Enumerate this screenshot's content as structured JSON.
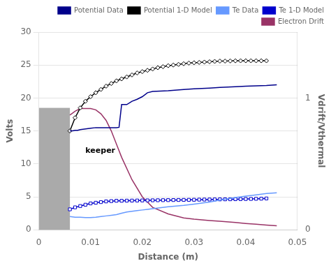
{
  "chart_data": {
    "type": "line",
    "xlabel": "Distance (m)",
    "ylabel": "Volts",
    "y2label": "Vdrift/Vthermal",
    "xlim": [
      0,
      0.05
    ],
    "xticks": [
      0,
      0.01,
      0.02,
      0.03,
      0.04,
      0.05
    ],
    "ylim": [
      0,
      30
    ],
    "yticks": [
      0,
      5,
      10,
      15,
      20,
      25,
      30
    ],
    "y2lim": [
      0,
      1.5
    ],
    "y2ticks": [
      0,
      1
    ],
    "grid": "y",
    "legend": "upper right",
    "rectangles": [
      {
        "x0": 0.0,
        "x1": 0.006,
        "y0": 0,
        "y1": 18.5,
        "color": "#AAAAAA"
      }
    ],
    "annotations": [
      {
        "text": "keeper",
        "x": 0.009,
        "y": 12.0
      }
    ],
    "series": [
      {
        "name": "Potential Data",
        "color": "#00008B",
        "x": [
          0.006,
          0.0065,
          0.007,
          0.0075,
          0.008,
          0.009,
          0.01,
          0.011,
          0.012,
          0.013,
          0.014,
          0.015,
          0.0155,
          0.016,
          0.0165,
          0.017,
          0.018,
          0.019,
          0.02,
          0.021,
          0.022,
          0.025,
          0.028,
          0.03,
          0.033,
          0.035,
          0.038,
          0.04,
          0.042,
          0.044,
          0.046
        ],
        "values": [
          15.0,
          15.0,
          15.1,
          15.1,
          15.2,
          15.3,
          15.4,
          15.5,
          15.5,
          15.5,
          15.5,
          15.5,
          15.55,
          19.0,
          19.0,
          19.0,
          19.5,
          19.8,
          20.2,
          20.8,
          21.0,
          21.1,
          21.3,
          21.4,
          21.5,
          21.6,
          21.7,
          21.8,
          21.85,
          21.9,
          22.0
        ]
      },
      {
        "name": "Potential 1-D Model",
        "color": "#000000",
        "marker": "diamond",
        "x": [
          0.006,
          0.007,
          0.008,
          0.009,
          0.01,
          0.011,
          0.012,
          0.013,
          0.014,
          0.015,
          0.016,
          0.017,
          0.018,
          0.019,
          0.02,
          0.021,
          0.022,
          0.023,
          0.024,
          0.025,
          0.026,
          0.027,
          0.028,
          0.029,
          0.03,
          0.031,
          0.032,
          0.033,
          0.034,
          0.035,
          0.036,
          0.037,
          0.038,
          0.039,
          0.04,
          0.041,
          0.042,
          0.043,
          0.044
        ],
        "values": [
          15.0,
          17.0,
          18.5,
          19.5,
          20.2,
          20.8,
          21.3,
          21.8,
          22.2,
          22.6,
          22.9,
          23.2,
          23.5,
          23.8,
          24.0,
          24.2,
          24.4,
          24.6,
          24.75,
          24.9,
          25.0,
          25.1,
          25.2,
          25.3,
          25.35,
          25.4,
          25.45,
          25.5,
          25.55,
          25.6,
          25.6,
          25.62,
          25.64,
          25.65,
          25.65,
          25.65,
          25.65,
          25.65,
          25.65
        ]
      },
      {
        "name": "Te Data",
        "color": "#6699FF",
        "x": [
          0.006,
          0.007,
          0.008,
          0.009,
          0.01,
          0.011,
          0.012,
          0.013,
          0.014,
          0.015,
          0.016,
          0.017,
          0.018,
          0.019,
          0.02,
          0.021,
          0.022,
          0.025,
          0.028,
          0.03,
          0.033,
          0.035,
          0.038,
          0.04,
          0.042,
          0.044,
          0.046
        ],
        "values": [
          2.0,
          1.9,
          1.9,
          1.85,
          1.85,
          1.9,
          2.0,
          2.1,
          2.2,
          2.3,
          2.5,
          2.7,
          2.8,
          2.9,
          3.0,
          3.1,
          3.2,
          3.5,
          3.7,
          3.9,
          4.2,
          4.5,
          4.9,
          5.1,
          5.3,
          5.5,
          5.6
        ]
      },
      {
        "name": "Te 1-D Model",
        "color": "#0000CD",
        "marker": "square",
        "x": [
          0.006,
          0.007,
          0.008,
          0.009,
          0.01,
          0.011,
          0.012,
          0.013,
          0.014,
          0.015,
          0.016,
          0.017,
          0.018,
          0.019,
          0.02,
          0.021,
          0.022,
          0.023,
          0.024,
          0.025,
          0.026,
          0.027,
          0.028,
          0.029,
          0.03,
          0.031,
          0.032,
          0.033,
          0.034,
          0.035,
          0.036,
          0.037,
          0.038,
          0.039,
          0.04,
          0.041,
          0.042,
          0.043,
          0.044
        ],
        "values": [
          3.1,
          3.4,
          3.6,
          3.8,
          4.0,
          4.1,
          4.2,
          4.3,
          4.35,
          4.4,
          4.4,
          4.42,
          4.43,
          4.44,
          4.45,
          4.46,
          4.47,
          4.48,
          4.49,
          4.5,
          4.51,
          4.52,
          4.53,
          4.54,
          4.55,
          4.57,
          4.58,
          4.59,
          4.6,
          4.61,
          4.62,
          4.63,
          4.64,
          4.65,
          4.67,
          4.68,
          4.7,
          4.72,
          4.75
        ]
      },
      {
        "name": "Electron Drift",
        "color": "#993366",
        "axis": "y2",
        "x": [
          0.006,
          0.007,
          0.008,
          0.009,
          0.01,
          0.011,
          0.012,
          0.013,
          0.014,
          0.015,
          0.016,
          0.018,
          0.02,
          0.022,
          0.025,
          0.028,
          0.03,
          0.033,
          0.035,
          0.038,
          0.04,
          0.042,
          0.044,
          0.046
        ],
        "values": [
          0.87,
          0.9,
          0.92,
          0.92,
          0.92,
          0.91,
          0.88,
          0.83,
          0.75,
          0.65,
          0.55,
          0.38,
          0.25,
          0.17,
          0.12,
          0.09,
          0.08,
          0.07,
          0.065,
          0.055,
          0.048,
          0.042,
          0.036,
          0.03
        ]
      }
    ]
  }
}
